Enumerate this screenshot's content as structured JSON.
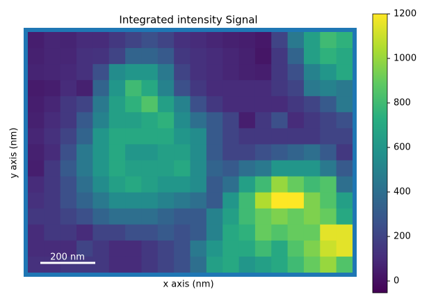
{
  "chart_data": {
    "type": "heatmap",
    "title": "Integrated intensity Signal",
    "x_label": "x axis (nm)",
    "y_label": "y axis (nm)",
    "scalebar": "200 nm",
    "colormap": "viridis",
    "z": [
      [
        50,
        80,
        70,
        100,
        100,
        150,
        200,
        250,
        200,
        120,
        100,
        80,
        60,
        50,
        30,
        200,
        450,
        650,
        800,
        750
      ],
      [
        60,
        80,
        80,
        120,
        130,
        200,
        350,
        350,
        300,
        150,
        120,
        100,
        80,
        60,
        20,
        150,
        350,
        650,
        750,
        700
      ],
      [
        70,
        80,
        90,
        120,
        250,
        550,
        600,
        600,
        450,
        200,
        120,
        100,
        80,
        60,
        50,
        150,
        250,
        500,
        600,
        700
      ],
      [
        40,
        50,
        100,
        60,
        350,
        600,
        800,
        700,
        500,
        250,
        150,
        100,
        100,
        100,
        100,
        150,
        200,
        450,
        500,
        450
      ],
      [
        50,
        80,
        150,
        200,
        450,
        650,
        750,
        850,
        650,
        500,
        250,
        150,
        100,
        100,
        100,
        100,
        150,
        200,
        300,
        450
      ],
      [
        60,
        100,
        150,
        300,
        500,
        650,
        650,
        700,
        750,
        550,
        400,
        300,
        200,
        50,
        150,
        250,
        100,
        150,
        200,
        250
      ],
      [
        80,
        120,
        200,
        350,
        600,
        700,
        700,
        700,
        700,
        600,
        550,
        300,
        200,
        150,
        150,
        150,
        150,
        150,
        200,
        200
      ],
      [
        60,
        100,
        250,
        450,
        600,
        700,
        600,
        600,
        650,
        650,
        550,
        300,
        200,
        200,
        250,
        300,
        350,
        400,
        300,
        150
      ],
      [
        50,
        150,
        300,
        450,
        600,
        700,
        650,
        650,
        650,
        700,
        550,
        350,
        300,
        400,
        450,
        600,
        600,
        600,
        450,
        300
      ],
      [
        100,
        150,
        250,
        400,
        550,
        650,
        700,
        650,
        600,
        600,
        550,
        300,
        400,
        650,
        800,
        1000,
        900,
        800,
        850,
        400
      ],
      [
        120,
        150,
        250,
        350,
        450,
        550,
        550,
        550,
        500,
        450,
        400,
        300,
        600,
        800,
        1050,
        1200,
        1200,
        950,
        850,
        650
      ],
      [
        150,
        150,
        200,
        250,
        350,
        400,
        400,
        400,
        350,
        300,
        300,
        500,
        650,
        800,
        900,
        950,
        900,
        950,
        900,
        700
      ],
      [
        100,
        150,
        150,
        100,
        200,
        200,
        250,
        250,
        300,
        250,
        300,
        500,
        700,
        750,
        900,
        850,
        900,
        900,
        1150,
        1150
      ],
      [
        100,
        100,
        100,
        200,
        150,
        100,
        100,
        150,
        200,
        250,
        450,
        600,
        700,
        700,
        800,
        700,
        850,
        950,
        1100,
        1150
      ],
      [
        120,
        120,
        150,
        150,
        150,
        100,
        100,
        150,
        200,
        250,
        400,
        650,
        700,
        600,
        650,
        700,
        800,
        900,
        1000,
        850
      ]
    ],
    "clim": [
      -53,
      1200
    ],
    "cticks": [
      0,
      200,
      400,
      600,
      800,
      1000,
      1200
    ]
  }
}
